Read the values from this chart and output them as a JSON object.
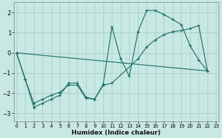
{
  "xlabel": "Humidex (Indice chaleur)",
  "bg_color": "#c8e8e4",
  "grid_color": "#aad0cc",
  "line_color": "#1a6e64",
  "xlim": [
    -0.3,
    23.3
  ],
  "ylim": [
    -3.4,
    2.5
  ],
  "xticks": [
    0,
    1,
    2,
    3,
    4,
    5,
    6,
    7,
    8,
    9,
    10,
    11,
    12,
    13,
    14,
    15,
    16,
    17,
    18,
    19,
    20,
    21,
    22,
    23
  ],
  "yticks": [
    -3,
    -2,
    -1,
    0,
    1,
    2
  ],
  "line1": [
    [
      0,
      0.0
    ],
    [
      1,
      -1.3
    ],
    [
      2,
      -2.7
    ],
    [
      3,
      -2.5
    ],
    [
      4,
      -2.3
    ],
    [
      5,
      -2.1
    ],
    [
      6,
      -1.5
    ],
    [
      7,
      -1.5
    ],
    [
      8,
      -2.2
    ],
    [
      9,
      -2.3
    ],
    [
      10,
      -1.55
    ],
    [
      11,
      1.3
    ],
    [
      12,
      -0.3
    ],
    [
      13,
      -1.15
    ],
    [
      14,
      1.05
    ],
    [
      15,
      2.1
    ],
    [
      16,
      2.1
    ],
    [
      17,
      1.9
    ],
    [
      18,
      1.65
    ],
    [
      19,
      1.4
    ],
    [
      20,
      0.35
    ],
    [
      21,
      -0.35
    ],
    [
      22,
      -0.9
    ]
  ],
  "line2": [
    [
      0,
      0.0
    ],
    [
      1,
      -1.3
    ],
    [
      2,
      -2.5
    ],
    [
      3,
      -2.3
    ],
    [
      4,
      -2.1
    ],
    [
      5,
      -1.95
    ],
    [
      6,
      -1.6
    ],
    [
      7,
      -1.6
    ],
    [
      8,
      -2.25
    ],
    [
      9,
      -2.3
    ],
    [
      10,
      -1.6
    ],
    [
      11,
      -1.5
    ],
    [
      14,
      -0.3
    ],
    [
      15,
      0.3
    ],
    [
      16,
      0.65
    ],
    [
      17,
      0.9
    ],
    [
      18,
      1.05
    ],
    [
      19,
      1.1
    ],
    [
      20,
      1.2
    ],
    [
      21,
      1.35
    ],
    [
      22,
      -0.9
    ]
  ],
  "line3": [
    [
      0,
      0.0
    ],
    [
      22,
      -0.9
    ]
  ]
}
